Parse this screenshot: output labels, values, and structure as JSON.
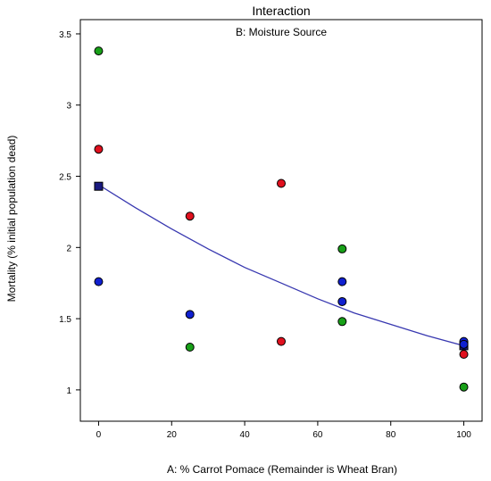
{
  "chart_data": {
    "type": "scatter",
    "title": "Interaction",
    "subtitle": "B: Moisture Source",
    "xlabel": "A: % Carrot Pomace (Remainder is Wheat Bran)",
    "ylabel": "Mortality (% initial population dead)",
    "xlim": [
      -5,
      105
    ],
    "ylim": [
      0.78,
      3.6
    ],
    "xticks": [
      0,
      20,
      40,
      60,
      80,
      100
    ],
    "yticks": [
      1,
      1.5,
      2,
      2.5,
      3,
      3.5
    ],
    "ytick_labels": [
      "1",
      "1.5",
      "2",
      "2.5",
      "3",
      "3.5"
    ],
    "grid": false,
    "series": [
      {
        "color": "#e0101e",
        "points": [
          [
            0,
            2.69
          ],
          [
            25,
            2.22
          ],
          [
            50,
            2.45
          ],
          [
            50,
            1.34
          ],
          [
            100,
            1.25
          ]
        ]
      },
      {
        "color": "#18a018",
        "points": [
          [
            0,
            3.38
          ],
          [
            25,
            1.3
          ],
          [
            66.7,
            1.99
          ],
          [
            66.7,
            1.48
          ],
          [
            100,
            1.02
          ]
        ]
      },
      {
        "color": "#1020d0",
        "points": [
          [
            0,
            1.76
          ],
          [
            25,
            1.53
          ],
          [
            66.7,
            1.76
          ],
          [
            66.7,
            1.62
          ],
          [
            100,
            1.34
          ],
          [
            100,
            1.32
          ]
        ]
      }
    ],
    "fit_line": {
      "color": "#3838b0",
      "points": [
        [
          0,
          2.44
        ],
        [
          10,
          2.28
        ],
        [
          20,
          2.13
        ],
        [
          30,
          1.99
        ],
        [
          40,
          1.86
        ],
        [
          50,
          1.75
        ],
        [
          60,
          1.64
        ],
        [
          70,
          1.54
        ],
        [
          80,
          1.46
        ],
        [
          90,
          1.38
        ],
        [
          100,
          1.31
        ]
      ]
    },
    "design_points": [
      [
        0,
        2.43
      ],
      [
        100,
        1.31
      ]
    ]
  }
}
